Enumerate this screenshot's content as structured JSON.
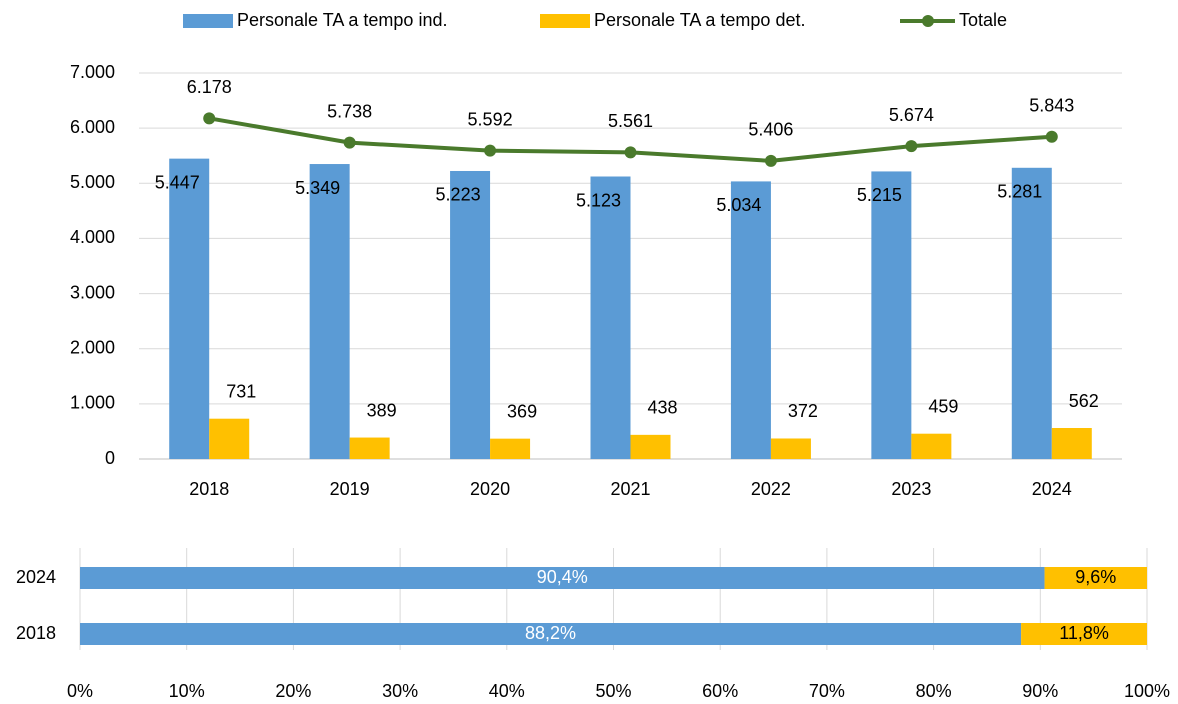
{
  "chart_data": [
    {
      "type": "bar",
      "categories": [
        "2018",
        "2019",
        "2020",
        "2021",
        "2022",
        "2023",
        "2024"
      ],
      "series": [
        {
          "name": "Personale TA a tempo ind.",
          "color": "#5b9bd5",
          "values": [
            5447,
            5349,
            5223,
            5123,
            5034,
            5215,
            5281
          ],
          "value_labels": [
            "5.447",
            "5.349",
            "5.223",
            "5.123",
            "5.034",
            "5.215",
            "5.281"
          ]
        },
        {
          "name": "Personale TA a tempo det.",
          "color": "#ffc000",
          "values": [
            731,
            389,
            369,
            438,
            372,
            459,
            562
          ]
        },
        {
          "name": "Totale",
          "type": "line",
          "color": "#4a7a2c",
          "values": [
            6178,
            5738,
            5592,
            5561,
            5406,
            5674,
            5843
          ],
          "value_labels": [
            "6.178",
            "5.738",
            "5.592",
            "5.561",
            "5.406",
            "5.674",
            "5.843"
          ]
        }
      ],
      "ylim": [
        0,
        7000
      ],
      "yticks": [
        0,
        {
          "value": 1000,
          "label": "1.000"
        },
        {
          "value": 2000,
          "label": "2.000"
        },
        {
          "value": 3000,
          "label": "3.000"
        },
        {
          "value": 4000,
          "label": "4.000"
        },
        {
          "value": 5000,
          "label": "5.000"
        },
        {
          "value": 6000,
          "label": "6.000"
        },
        {
          "value": 7000,
          "label": "7.000"
        }
      ],
      "grid": true,
      "legend": "top"
    },
    {
      "type": "stacked_barh",
      "categories": [
        "2024",
        "2018"
      ],
      "series": [
        {
          "color": "#5b9bd5",
          "values": [
            90.4,
            88.2
          ],
          "value_labels": [
            "90,4%",
            "88,2%"
          ]
        },
        {
          "color": "#ffc000",
          "values": [
            9.6,
            11.8
          ],
          "value_labels": [
            "9,6%",
            "11,8%"
          ]
        }
      ],
      "xlim": [
        0,
        100
      ],
      "xticks": [
        {
          "value": 0,
          "label": "0%"
        },
        {
          "value": 10,
          "label": "10%"
        },
        {
          "value": 20,
          "label": "20%"
        },
        {
          "value": 30,
          "label": "30%"
        },
        {
          "value": 40,
          "label": "40%"
        },
        {
          "value": 50,
          "label": "50%"
        },
        {
          "value": 60,
          "label": "60%"
        },
        {
          "value": 70,
          "label": "70%"
        },
        {
          "value": 80,
          "label": "80%"
        },
        {
          "value": 90,
          "label": "90%"
        },
        {
          "value": 100,
          "label": "100%"
        }
      ],
      "grid": true
    }
  ]
}
